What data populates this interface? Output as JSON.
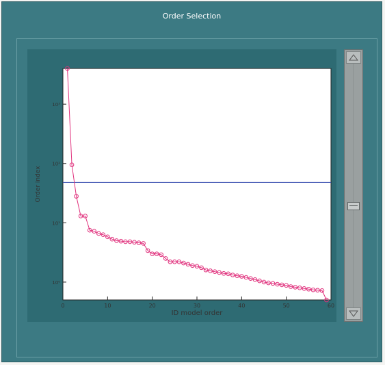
{
  "window": {
    "title": "Order Selection"
  },
  "icons": {
    "scroll_up": "triangle-up-icon",
    "scroll_down": "triangle-down-icon"
  },
  "colors": {
    "window_bg": "#3c7a83",
    "line": "#e0307c",
    "threshold": "#3a4fb0"
  },
  "chart_data": {
    "type": "line",
    "xlabel": "ID model order",
    "ylabel": "Order index",
    "xlim": [
      0,
      60
    ],
    "ylog": true,
    "ylim": [
      0.5,
      4000
    ],
    "x_ticks": [
      0,
      10,
      20,
      30,
      40,
      50,
      60
    ],
    "y_ticks": [
      1,
      10,
      100,
      1000
    ],
    "y_tick_labels": [
      "10⁰",
      "10¹",
      "10²",
      "10³"
    ],
    "threshold": 48,
    "series": [
      {
        "x": [
          1,
          2,
          3,
          4,
          5,
          6,
          7,
          8,
          9,
          10,
          11,
          12,
          13,
          14,
          15,
          16,
          17,
          18,
          19,
          20,
          21,
          22,
          23,
          24,
          25,
          26,
          27,
          28,
          29,
          30,
          31,
          32,
          33,
          34,
          35,
          36,
          37,
          38,
          39,
          40,
          41,
          42,
          43,
          44,
          45,
          46,
          47,
          48,
          49,
          50,
          51,
          52,
          53,
          54,
          55,
          56,
          57,
          58,
          59
        ],
        "y": [
          4000,
          95,
          28,
          13,
          13,
          7.5,
          7.2,
          6.6,
          6.3,
          5.8,
          5.3,
          5.0,
          4.9,
          4.8,
          4.8,
          4.7,
          4.6,
          4.5,
          3.4,
          3.0,
          3.0,
          2.9,
          2.5,
          2.2,
          2.2,
          2.2,
          2.1,
          2.0,
          1.9,
          1.85,
          1.75,
          1.6,
          1.55,
          1.5,
          1.45,
          1.4,
          1.38,
          1.32,
          1.28,
          1.25,
          1.2,
          1.15,
          1.1,
          1.05,
          1.0,
          0.97,
          0.95,
          0.92,
          0.9,
          0.88,
          0.84,
          0.82,
          0.8,
          0.78,
          0.76,
          0.74,
          0.73,
          0.72,
          0.5
        ]
      }
    ]
  }
}
